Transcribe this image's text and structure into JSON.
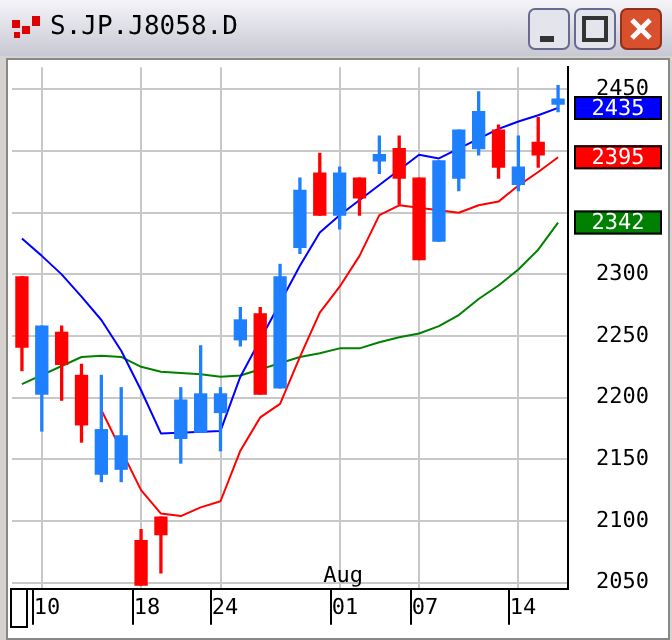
{
  "chart_data": {
    "type": "candlestick",
    "title": "S.JP.J8058.D",
    "categories": [
      null,
      "10",
      null,
      null,
      null,
      null,
      "18",
      null,
      null,
      null,
      "24",
      null,
      null,
      null,
      null,
      null,
      "01",
      null,
      null,
      null,
      "07",
      null,
      null,
      null,
      null,
      "14",
      null,
      null
    ],
    "ohlc": [
      [
        2298,
        2298,
        2222,
        2241
      ],
      [
        2203,
        2258,
        2173,
        2258
      ],
      [
        2253,
        2258,
        2198,
        2227
      ],
      [
        2218,
        2227,
        2164,
        2178
      ],
      [
        2138,
        2218,
        2132,
        2174
      ],
      [
        2142,
        2208,
        2132,
        2169
      ],
      [
        2084,
        2093,
        2048,
        2048
      ],
      [
        2103,
        2103,
        2058,
        2089
      ],
      [
        2167,
        2208,
        2147,
        2198
      ],
      [
        2172,
        2242,
        2172,
        2203
      ],
      [
        2188,
        2208,
        2157,
        2203
      ],
      [
        2247,
        2273,
        2242,
        2263
      ],
      [
        2268,
        2273,
        2203,
        2203
      ],
      [
        2208,
        2308,
        2208,
        2298
      ],
      [
        2322,
        2378,
        2317,
        2368
      ],
      [
        2382,
        2398,
        2348,
        2348
      ],
      [
        2348,
        2387,
        2337,
        2382
      ],
      [
        2378,
        2378,
        2348,
        2362
      ],
      [
        2392,
        2412,
        2382,
        2397
      ],
      [
        2402,
        2412,
        2357,
        2378
      ],
      [
        2378,
        2378,
        2312,
        2312
      ],
      [
        2327,
        2392,
        2327,
        2392
      ],
      [
        2378,
        2417,
        2368,
        2417
      ],
      [
        2402,
        2448,
        2397,
        2432
      ],
      [
        2417,
        2421,
        2378,
        2387
      ],
      [
        2373,
        2412,
        2368,
        2387
      ],
      [
        2407,
        2427,
        2387,
        2397
      ],
      [
        2438,
        2453,
        2432,
        2442
      ]
    ],
    "colors": [
      "#ff0000",
      "#1e7fff",
      "#ff0000",
      "#ff0000",
      "#1e7fff",
      "#1e7fff",
      "#ff0000",
      "#ff0000",
      "#1e7fff",
      "#1e7fff",
      "#1e7fff",
      "#1e7fff",
      "#ff0000",
      "#1e7fff",
      "#1e7fff",
      "#ff0000",
      "#1e7fff",
      "#ff0000",
      "#1e7fff",
      "#ff0000",
      "#ff0000",
      "#1e7fff",
      "#1e7fff",
      "#1e7fff",
      "#ff0000",
      "#1e7fff",
      "#ff0000",
      "#1e7fff"
    ],
    "series": [
      {
        "type": "line",
        "color": "#0000ff",
        "values": [
          2329,
          2315,
          2300,
          2282,
          2263,
          2238,
          2206,
          2171,
          null,
          null,
          2173,
          2217,
          null,
          null,
          2307,
          2334,
          2348,
          null,
          null,
          null,
          2397,
          2394,
          null,
          null,
          2418,
          2424,
          2429,
          2435
        ],
        "value_labels": [
          null,
          null,
          null,
          null,
          null,
          null,
          null,
          null,
          null,
          null,
          null,
          null,
          null,
          null,
          null,
          null,
          null,
          null,
          null,
          null,
          null,
          null,
          null,
          null,
          null,
          null,
          null,
          "2435"
        ]
      },
      {
        "type": "line",
        "color": "#ff0000",
        "values": [
          null,
          null,
          null,
          null,
          2190,
          null,
          2125,
          2106,
          2104,
          2111,
          2116,
          2157,
          2184,
          2195,
          2233,
          2269,
          2290,
          2315,
          2348,
          2356,
          null,
          null,
          2350,
          2356,
          2359,
          2372,
          2383,
          2395
        ],
        "value_labels": [
          null,
          null,
          null,
          null,
          null,
          null,
          null,
          null,
          null,
          null,
          null,
          null,
          null,
          null,
          null,
          null,
          null,
          null,
          null,
          null,
          null,
          null,
          null,
          null,
          null,
          null,
          null,
          "2395"
        ]
      },
      {
        "type": "line",
        "color": "#008000",
        "values": [
          2211,
          null,
          null,
          2233,
          2234,
          2233,
          2225,
          2221,
          2220,
          2219,
          2217,
          2218,
          null,
          null,
          2233,
          2236,
          2240,
          2240,
          2245,
          2249,
          2252,
          2258,
          2267,
          2280,
          2291,
          2304,
          2320,
          2342
        ],
        "value_labels": [
          null,
          null,
          null,
          null,
          null,
          null,
          null,
          null,
          null,
          null,
          null,
          null,
          null,
          null,
          null,
          null,
          null,
          null,
          null,
          null,
          null,
          null,
          null,
          null,
          null,
          null,
          null,
          "2342"
        ]
      }
    ],
    "ylim": [
      2045,
      2468
    ],
    "yticks": [
      2050,
      2100,
      2150,
      2200,
      2250,
      2300,
      {
        "value": 2350,
        "label": null
      },
      {
        "value": 2400,
        "label": null
      },
      2450
    ],
    "grid": true,
    "marker": "none",
    "line_style": "solid",
    "legend": false,
    "annotations": [
      "Aug"
    ]
  }
}
